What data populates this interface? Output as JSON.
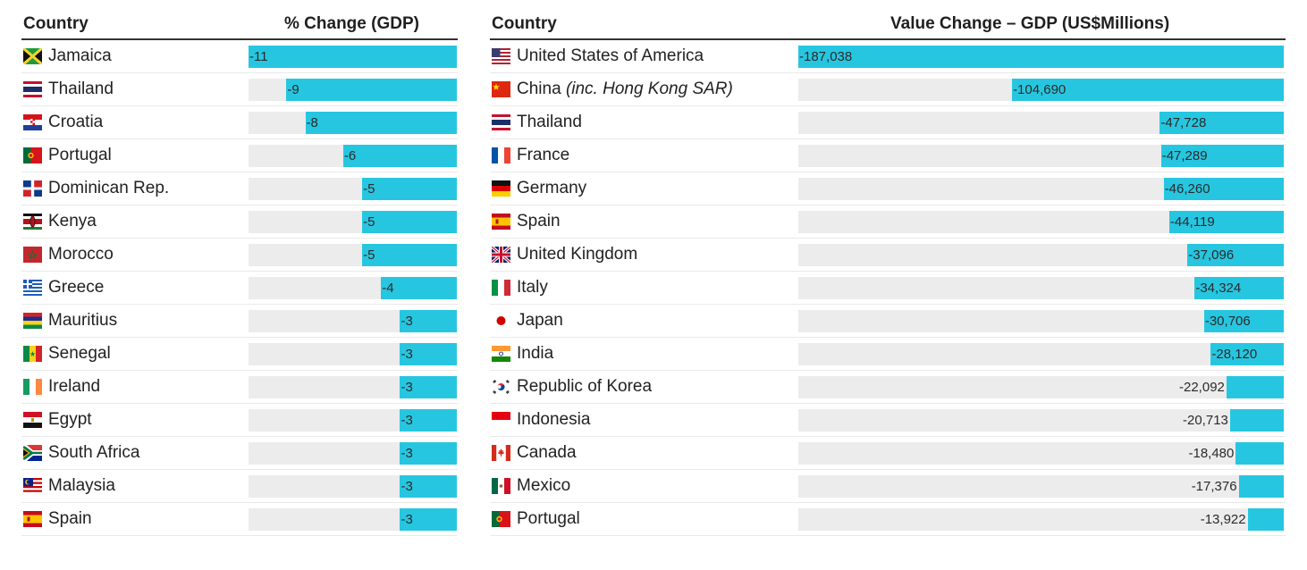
{
  "headers": {
    "left_country": "Country",
    "left_metric": "% Change (GDP)",
    "right_country": "Country",
    "right_metric": "Value Change – GDP (US$Millions)"
  },
  "chart_data": [
    {
      "type": "bar",
      "title": "% Change (GDP)",
      "orientation": "horizontal",
      "xlim": [
        -11,
        0
      ],
      "categories": [
        "Jamaica",
        "Thailand",
        "Croatia",
        "Portugal",
        "Dominican Rep.",
        "Kenya",
        "Morocco",
        "Greece",
        "Mauritius",
        "Senegal",
        "Ireland",
        "Egypt",
        "South Africa",
        "Malaysia",
        "Spain"
      ],
      "values": [
        -11,
        -9,
        -8,
        -6,
        -5,
        -5,
        -5,
        -4,
        -3,
        -3,
        -3,
        -3,
        -3,
        -3,
        -3
      ],
      "labels": [
        "-11",
        "-9",
        "-8",
        "-6",
        "-5",
        "-5",
        "-5",
        "-4",
        "-3",
        "-3",
        "-3",
        "-3",
        "-3",
        "-3",
        "-3"
      ],
      "flags": [
        "jamaica",
        "thailand",
        "croatia",
        "portugal",
        "dominican",
        "kenya",
        "morocco",
        "greece",
        "mauritius",
        "senegal",
        "ireland",
        "egypt",
        "southafrica",
        "malaysia",
        "spain"
      ],
      "bar_color": "#27c6e0",
      "track_color": "#ececec"
    },
    {
      "type": "bar",
      "title": "Value Change – GDP (US$Millions)",
      "orientation": "horizontal",
      "xlim": [
        -187038,
        0
      ],
      "categories": [
        "United States of America",
        "China",
        "Thailand",
        "France",
        "Germany",
        "Spain",
        "United Kingdom",
        "Italy",
        "Japan",
        "India",
        "Republic of Korea",
        "Indonesia",
        "Canada",
        "Mexico",
        "Portugal"
      ],
      "category_notes": [
        "",
        "(inc. Hong Kong SAR)",
        "",
        "",
        "",
        "",
        "",
        "",
        "",
        "",
        "",
        "",
        "",
        "",
        ""
      ],
      "values": [
        -187038,
        -104690,
        -47728,
        -47289,
        -46260,
        -44119,
        -37096,
        -34324,
        -30706,
        -28120,
        -22092,
        -20713,
        -18480,
        -17376,
        -13922
      ],
      "labels": [
        "-187,038",
        "-104,690",
        "-47,728",
        "-47,289",
        "-46,260",
        "-44,119",
        "-37,096",
        "-34,324",
        "-30,706",
        "-28,120",
        "-22,092",
        "-20,713",
        "-18,480",
        "-17,376",
        "-13,922"
      ],
      "flags": [
        "usa",
        "china",
        "thailand",
        "france",
        "germany",
        "spain",
        "uk",
        "italy",
        "japan",
        "india",
        "korea",
        "indonesia",
        "canada",
        "mexico",
        "portugal"
      ],
      "bar_color": "#27c6e0",
      "track_color": "#ececec"
    }
  ]
}
